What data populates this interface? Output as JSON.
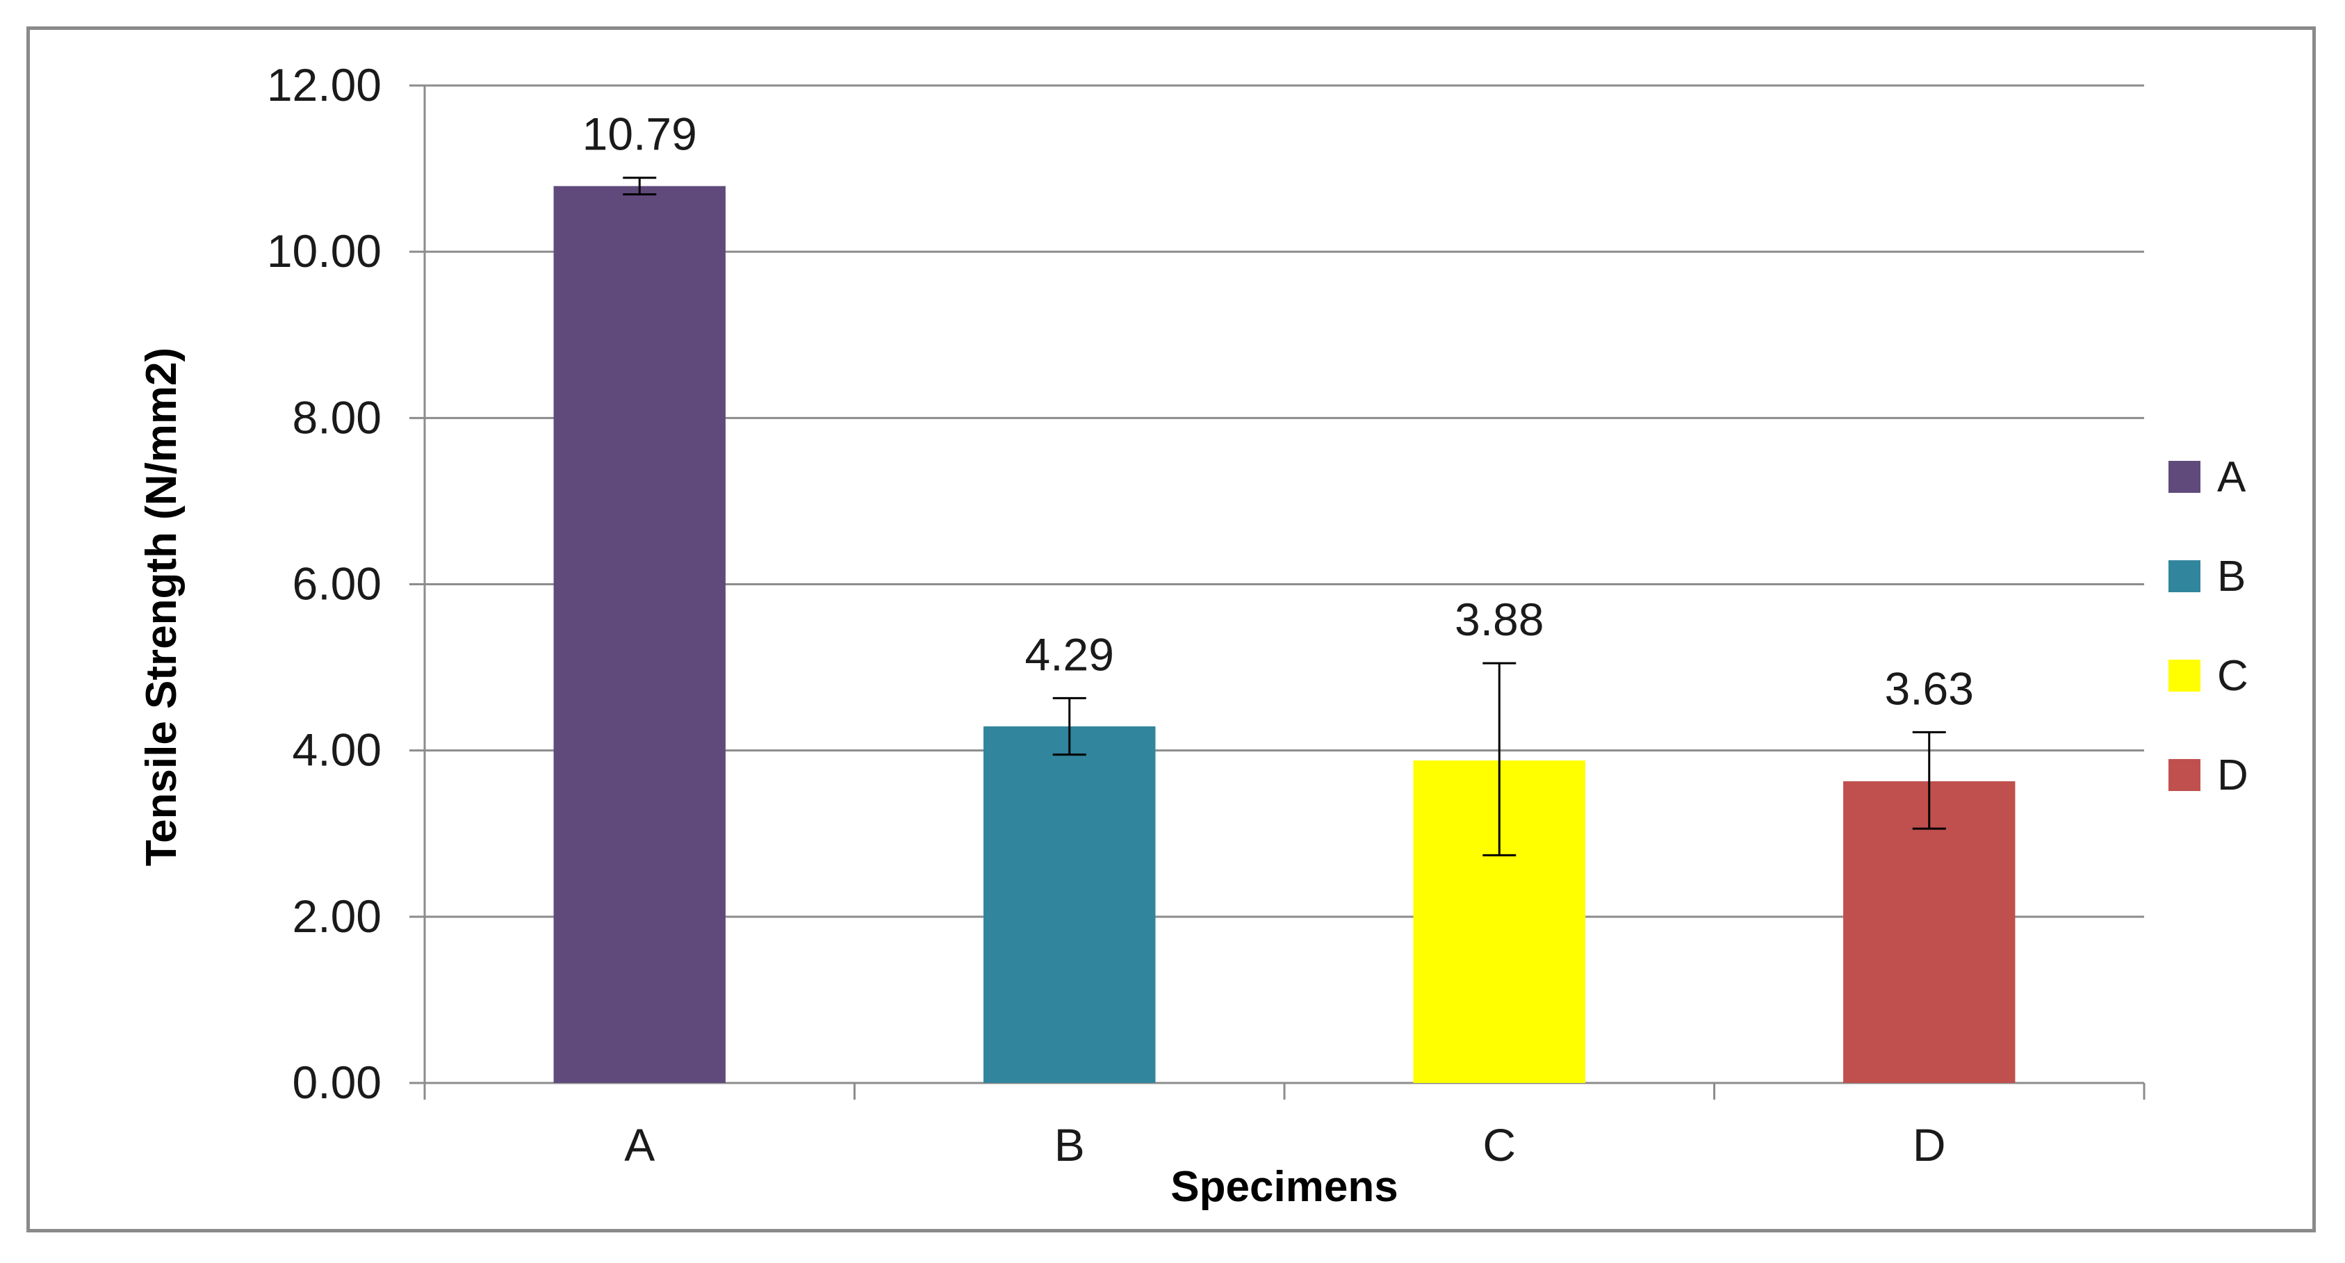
{
  "chart_data": {
    "type": "bar",
    "title": "",
    "xlabel": "Specimens",
    "ylabel": "Tensile Strength (N/mm2)",
    "categories": [
      "A",
      "B",
      "C",
      "D"
    ],
    "values": [
      10.79,
      4.29,
      3.88,
      3.63
    ],
    "value_labels": [
      "10.79",
      "4.29",
      "3.88",
      "3.63"
    ],
    "error_low": [
      10.69,
      3.95,
      2.74,
      3.06
    ],
    "error_high": [
      10.89,
      4.63,
      5.05,
      4.22
    ],
    "colors": [
      "#604a7b",
      "#31859c",
      "#ffff00",
      "#c0504d"
    ],
    "ylim": [
      0,
      12
    ],
    "yticks": [
      0,
      2,
      4,
      6,
      8,
      10,
      12
    ],
    "ytick_labels": [
      "0.00",
      "2.00",
      "4.00",
      "6.00",
      "8.00",
      "10.00",
      "12.00"
    ],
    "grid": true,
    "legend": {
      "position": "right",
      "entries": [
        "A",
        "B",
        "C",
        "D"
      ]
    }
  }
}
